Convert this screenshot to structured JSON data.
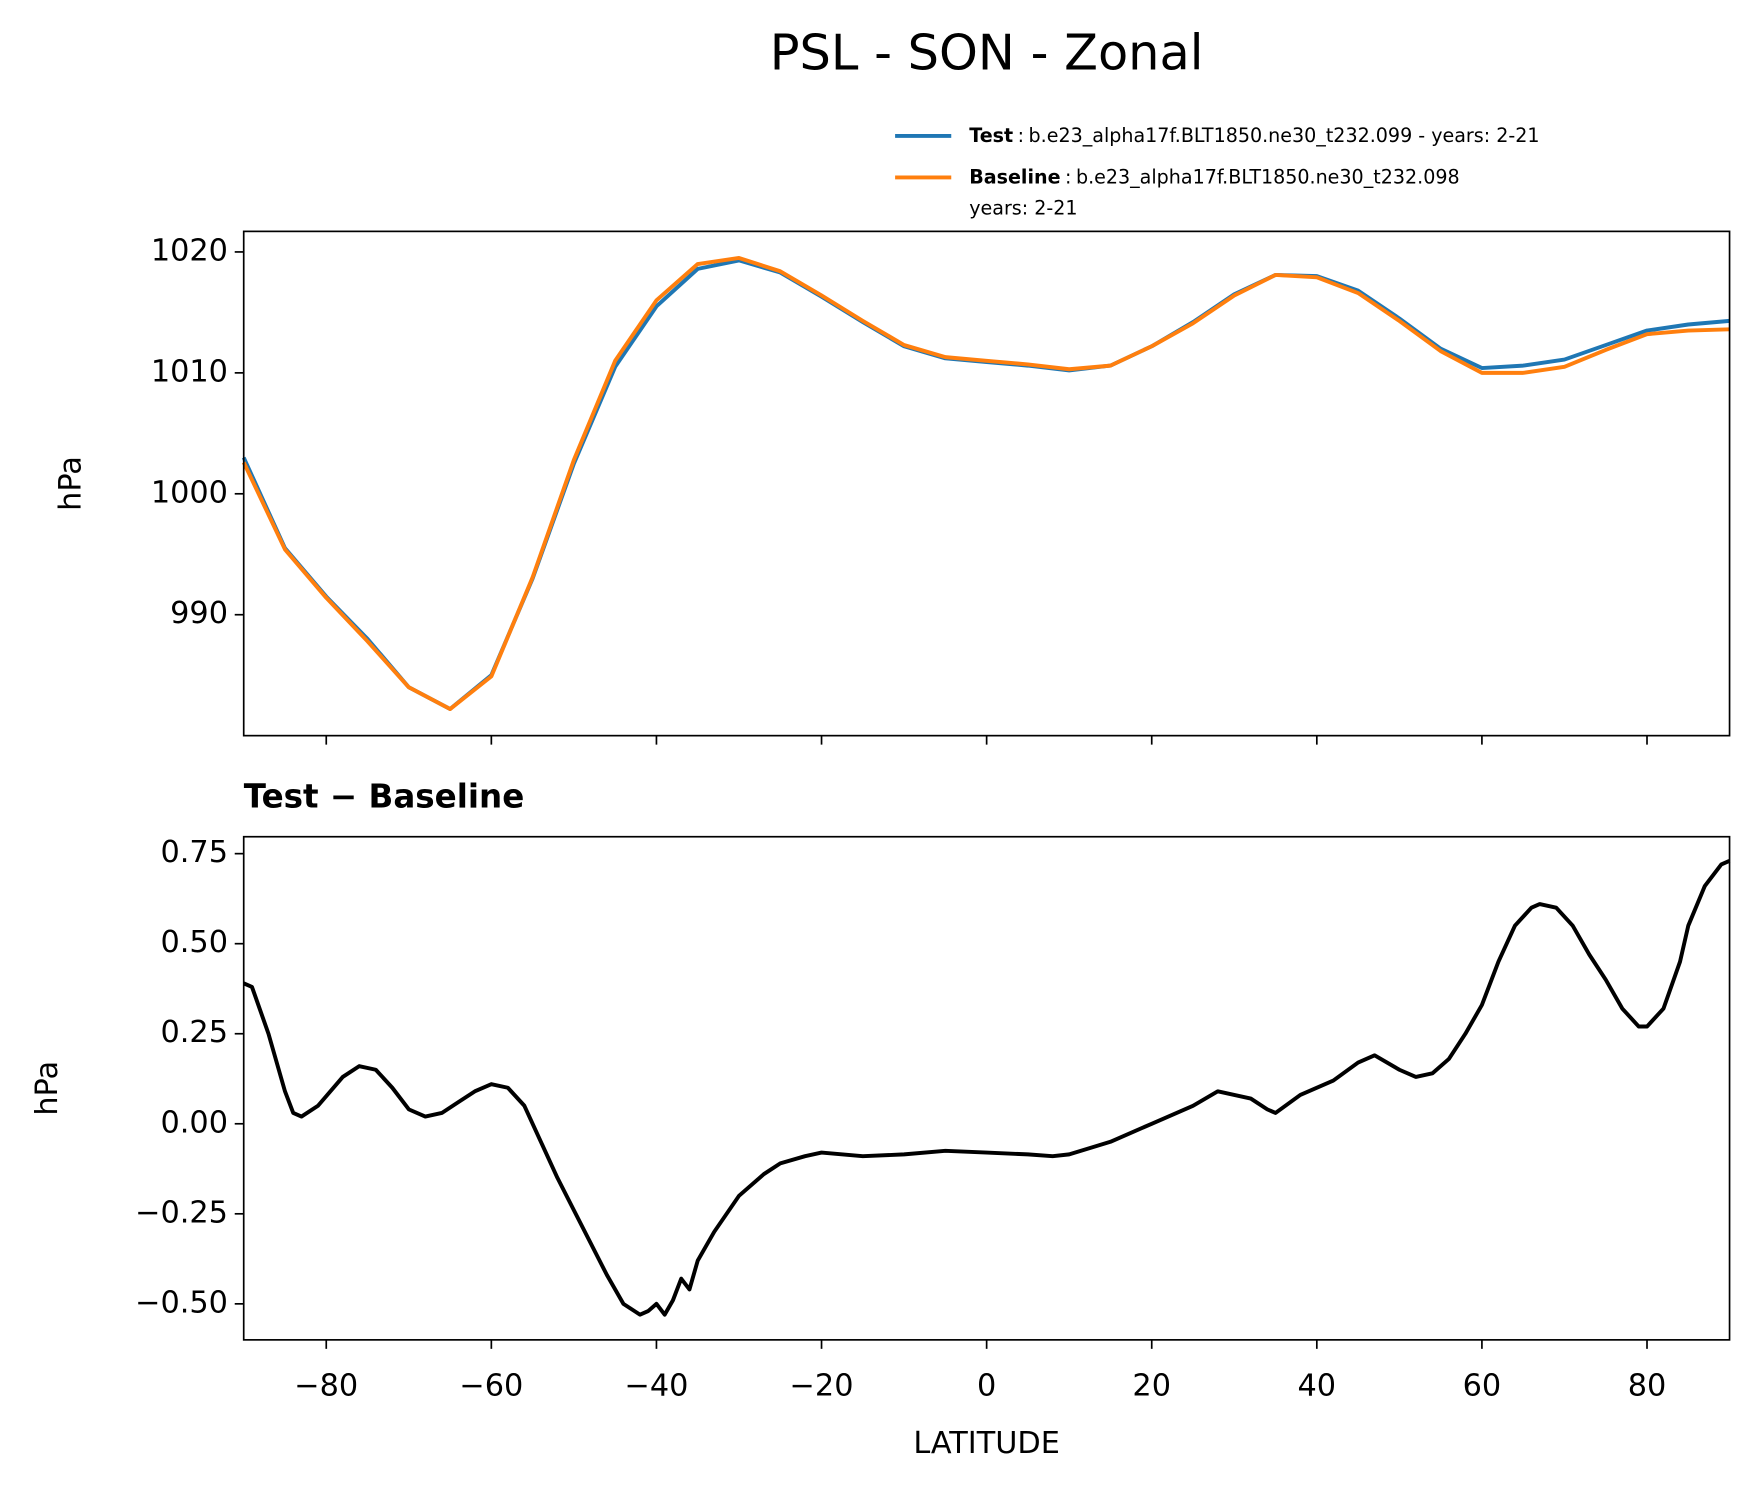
{
  "chart_data": [
    {
      "type": "line",
      "title": "PSL - SON - Zonal",
      "ylabel": "hPa",
      "x": [
        -90,
        -85,
        -80,
        -75,
        -70,
        -65,
        -60,
        -55,
        -50,
        -45,
        -40,
        -35,
        -30,
        -25,
        -20,
        -15,
        -10,
        -5,
        0,
        5,
        10,
        15,
        20,
        25,
        30,
        35,
        40,
        45,
        50,
        55,
        60,
        65,
        70,
        75,
        80,
        85,
        90
      ],
      "series": [
        {
          "name": "Test",
          "legend_lines": [
            "b.e23_alpha17f.BLT1850.ne30_t232.099 - years: 2-21"
          ],
          "color": "#1f77b4",
          "values": [
            1003,
            995.5,
            991.5,
            988,
            984,
            982.2,
            985,
            993,
            1002.5,
            1010.5,
            1015.5,
            1018.6,
            1019.3,
            1018.3,
            1016.3,
            1014.2,
            1012.2,
            1011.2,
            1010.9,
            1010.6,
            1010.2,
            1010.6,
            1012.2,
            1014.2,
            1016.5,
            1018.1,
            1018,
            1016.8,
            1014.5,
            1012,
            1010.4,
            1010.6,
            1011.1,
            1012.3,
            1013.5,
            1014,
            1014.3
          ]
        },
        {
          "name": "Baseline",
          "legend_lines": [
            "b.e23_alpha17f.BLT1850.ne30_t232.098",
            "years: 2-21"
          ],
          "color": "#ff7f0e",
          "values": [
            1002.6,
            995.4,
            991.4,
            987.8,
            984,
            982.2,
            984.9,
            993.1,
            1002.8,
            1011,
            1016,
            1019,
            1019.5,
            1018.4,
            1016.4,
            1014.3,
            1012.3,
            1011.3,
            1011,
            1010.7,
            1010.3,
            1010.6,
            1012.2,
            1014.1,
            1016.4,
            1018.1,
            1017.9,
            1016.6,
            1014.3,
            1011.8,
            1010,
            1010,
            1010.5,
            1011.9,
            1013.2,
            1013.5,
            1013.6
          ]
        }
      ],
      "legend_separator": ":",
      "xlim": [
        -90,
        90
      ],
      "ylim": [
        980,
        1021.7
      ],
      "yticks": [
        990,
        1000,
        1010,
        1020
      ]
    },
    {
      "type": "line",
      "title": "Test − Baseline",
      "ylabel": "hPa",
      "xlabel": "LATITUDE",
      "x": [
        -90,
        -89,
        -87,
        -85,
        -84,
        -83,
        -81,
        -78,
        -76,
        -74,
        -72,
        -70,
        -68,
        -66,
        -64,
        -62,
        -60,
        -58,
        -56,
        -54,
        -52,
        -50,
        -48,
        -46,
        -44,
        -42,
        -41,
        -40,
        -39,
        -38,
        -37,
        -36,
        -35,
        -33,
        -30,
        -27,
        -25,
        -22,
        -20,
        -15,
        -10,
        -5,
        0,
        5,
        8,
        10,
        15,
        20,
        25,
        28,
        32,
        34,
        35,
        38,
        42,
        45,
        47,
        50,
        52,
        54,
        56,
        58,
        60,
        62,
        64,
        66,
        67,
        69,
        71,
        73,
        75,
        77,
        79,
        80,
        82,
        84,
        85,
        87,
        89,
        90
      ],
      "values": [
        0.39,
        0.38,
        0.25,
        0.09,
        0.03,
        0.02,
        0.05,
        0.13,
        0.16,
        0.15,
        0.1,
        0.04,
        0.02,
        0.03,
        0.06,
        0.09,
        0.11,
        0.1,
        0.05,
        -0.05,
        -0.15,
        -0.24,
        -0.33,
        -0.42,
        -0.5,
        -0.53,
        -0.52,
        -0.5,
        -0.53,
        -0.49,
        -0.43,
        -0.46,
        -0.38,
        -0.3,
        -0.2,
        -0.14,
        -0.11,
        -0.09,
        -0.08,
        -0.09,
        -0.085,
        -0.075,
        -0.08,
        -0.085,
        -0.09,
        -0.085,
        -0.05,
        0.0,
        0.05,
        0.09,
        0.07,
        0.04,
        0.03,
        0.08,
        0.12,
        0.17,
        0.19,
        0.15,
        0.13,
        0.14,
        0.18,
        0.25,
        0.33,
        0.45,
        0.55,
        0.6,
        0.61,
        0.6,
        0.55,
        0.47,
        0.4,
        0.32,
        0.27,
        0.27,
        0.32,
        0.45,
        0.55,
        0.66,
        0.72,
        0.73
      ],
      "color": "#000000",
      "xlim": [
        -90,
        90
      ],
      "ylim": [
        -0.6,
        0.797
      ],
      "xticks": [
        {
          "value": -80,
          "label": "−80"
        },
        {
          "value": -60,
          "label": "−60"
        },
        {
          "value": -40,
          "label": "−40"
        },
        {
          "value": -20,
          "label": "−20"
        },
        0,
        20,
        40,
        60,
        80
      ],
      "yticks": [
        {
          "value": -0.5,
          "label": "−0.50"
        },
        {
          "value": -0.25,
          "label": "−0.25"
        },
        {
          "value": 0,
          "label": "0.00"
        },
        {
          "value": 0.25,
          "label": "0.25"
        },
        {
          "value": 0.5,
          "label": "0.50"
        },
        0.75
      ]
    }
  ]
}
